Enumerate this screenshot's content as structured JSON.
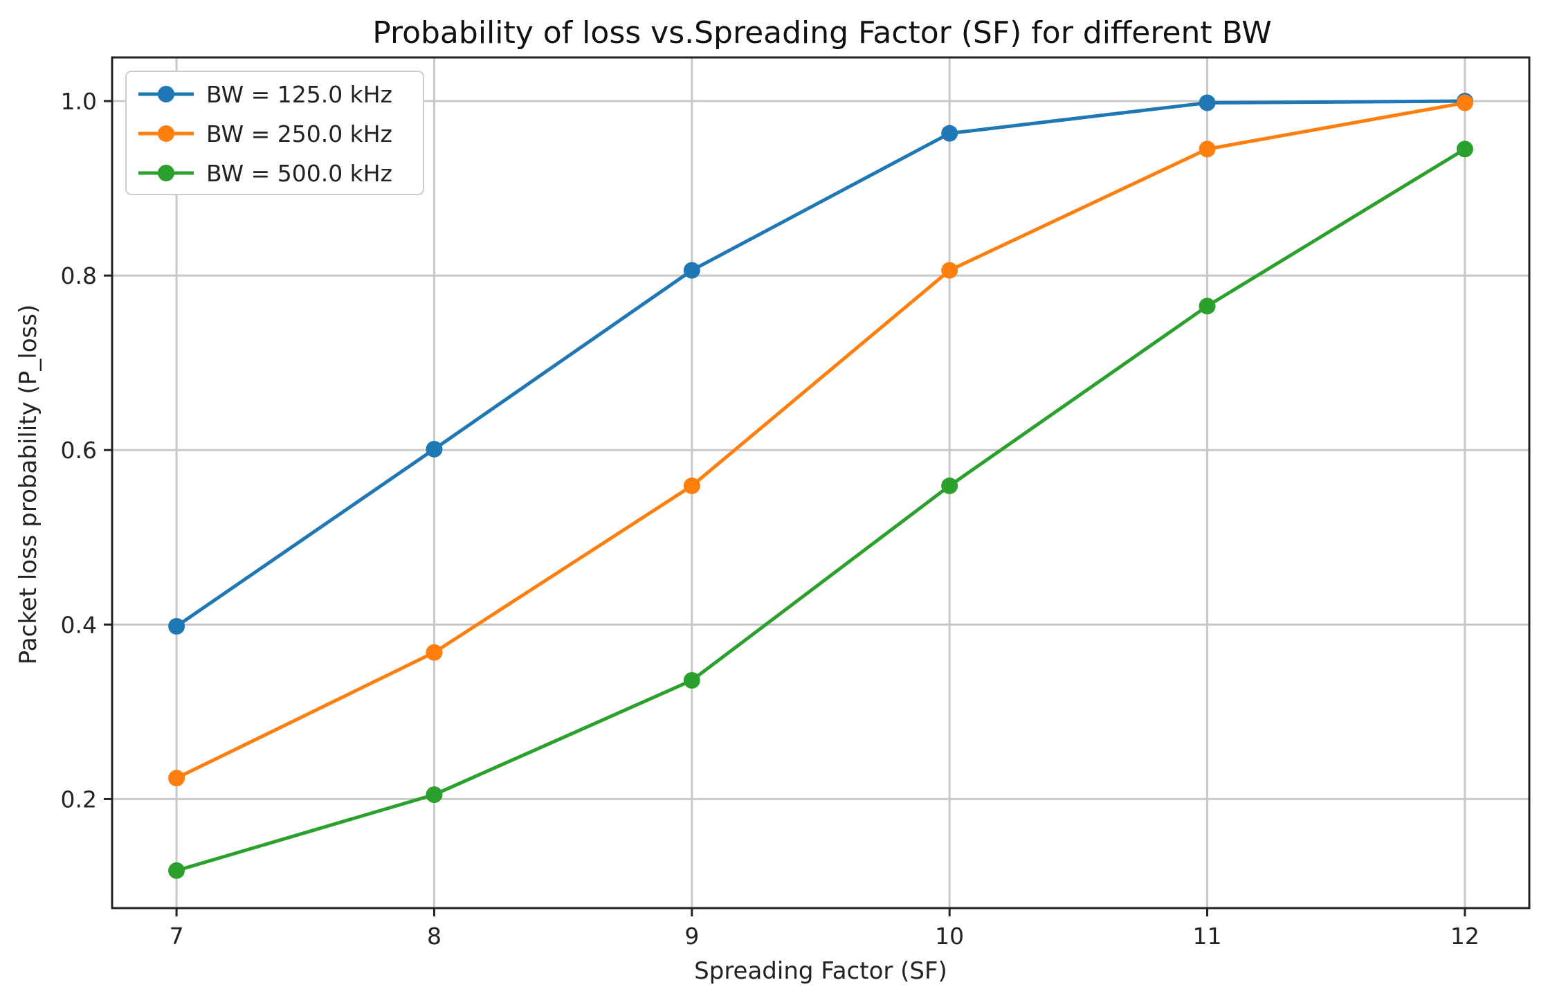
{
  "chart_data": {
    "type": "line",
    "title": "Probability of loss vs.Spreading Factor (SF) for different BW",
    "xlabel": "Spreading Factor (SF)",
    "ylabel": "Packet loss probability (P_loss)",
    "x": [
      7,
      8,
      9,
      10,
      11,
      12
    ],
    "xlim": [
      6.75,
      12.25
    ],
    "ylim": [
      0.075,
      1.05
    ],
    "xticks": [
      7,
      8,
      9,
      10,
      11,
      12
    ],
    "xtick_labels": [
      "7",
      "8",
      "9",
      "10",
      "11",
      "12"
    ],
    "yticks": [
      0.2,
      0.4,
      0.6,
      0.8,
      1.0
    ],
    "ytick_labels": [
      "0.2",
      "0.4",
      "0.6",
      "0.8",
      "1.0"
    ],
    "grid": true,
    "legend_position": "top-left",
    "series": [
      {
        "name": "BW = 125.0 kHz",
        "color": "#1f77b4",
        "values": [
          0.398,
          0.601,
          0.806,
          0.963,
          0.998,
          1.0
        ]
      },
      {
        "name": "BW = 250.0 kHz",
        "color": "#ff7f0e",
        "values": [
          0.224,
          0.368,
          0.559,
          0.806,
          0.945,
          0.998
        ]
      },
      {
        "name": "BW = 500.0 kHz",
        "color": "#2ca02c",
        "values": [
          0.118,
          0.205,
          0.336,
          0.559,
          0.765,
          0.945
        ]
      }
    ]
  }
}
